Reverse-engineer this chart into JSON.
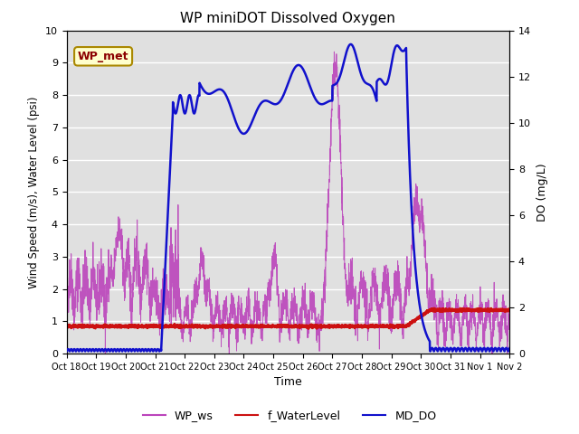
{
  "title": "WP miniDOT Dissolved Oxygen",
  "xlabel": "Time",
  "ylabel_left": "Wind Speed (m/s), Water Level (psi)",
  "ylabel_right": "DO (mg/L)",
  "annotation_box": "WP_met",
  "ylim_left": [
    0.0,
    10.0
  ],
  "ylim_right": [
    0,
    14
  ],
  "yticks_left": [
    0.0,
    1.0,
    2.0,
    3.0,
    4.0,
    5.0,
    6.0,
    7.0,
    8.0,
    9.0,
    10.0
  ],
  "yticks_right": [
    0,
    2,
    4,
    6,
    8,
    10,
    12,
    14
  ],
  "xtick_labels": [
    "Oct 18",
    "Oct 19",
    "Oct 20",
    "Oct 21",
    "Oct 22",
    "Oct 23",
    "Oct 24",
    "Oct 25",
    "Oct 26",
    "Oct 27",
    "Oct 28",
    "Oct 29",
    "Oct 30",
    "Oct 31",
    "Nov 1",
    "Nov 2"
  ],
  "bg_color": "#e0e0e0",
  "grid_color": "#ffffff",
  "wp_ws_color": "#bb44bb",
  "f_waterlevel_color": "#cc1111",
  "md_do_color": "#1111cc",
  "legend_labels": [
    "WP_ws",
    "f_WaterLevel",
    "MD_DO"
  ]
}
